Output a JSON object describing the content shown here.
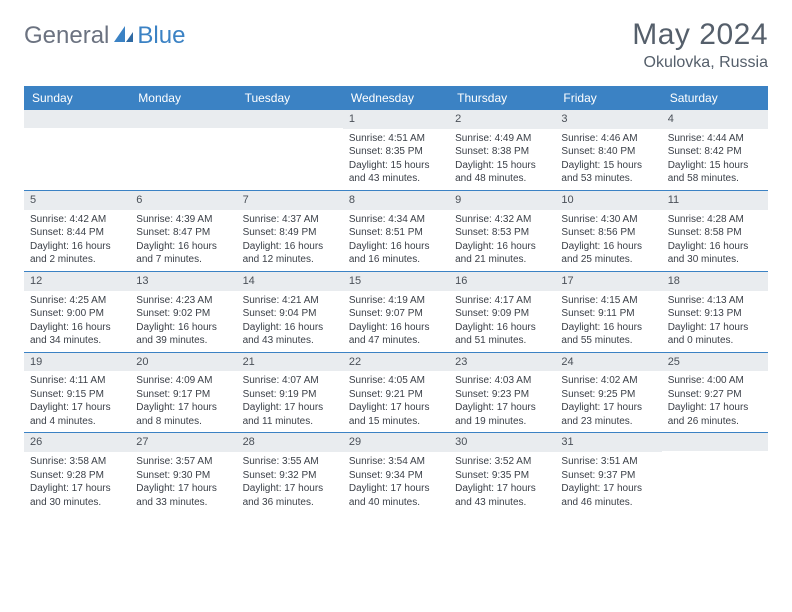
{
  "logo": {
    "part1": "General",
    "part2": "Blue"
  },
  "title": "May 2024",
  "location": "Okulovka, Russia",
  "colors": {
    "header_bar": "#3b82c4",
    "daynum_bg": "#e9ecef",
    "text": "#3a3f47",
    "title_text": "#555f6b"
  },
  "daysOfWeek": [
    "Sunday",
    "Monday",
    "Tuesday",
    "Wednesday",
    "Thursday",
    "Friday",
    "Saturday"
  ],
  "weeks": [
    [
      null,
      null,
      null,
      {
        "n": "1",
        "sr": "Sunrise: 4:51 AM",
        "ss": "Sunset: 8:35 PM",
        "dl": "Daylight: 15 hours and 43 minutes."
      },
      {
        "n": "2",
        "sr": "Sunrise: 4:49 AM",
        "ss": "Sunset: 8:38 PM",
        "dl": "Daylight: 15 hours and 48 minutes."
      },
      {
        "n": "3",
        "sr": "Sunrise: 4:46 AM",
        "ss": "Sunset: 8:40 PM",
        "dl": "Daylight: 15 hours and 53 minutes."
      },
      {
        "n": "4",
        "sr": "Sunrise: 4:44 AM",
        "ss": "Sunset: 8:42 PM",
        "dl": "Daylight: 15 hours and 58 minutes."
      }
    ],
    [
      {
        "n": "5",
        "sr": "Sunrise: 4:42 AM",
        "ss": "Sunset: 8:44 PM",
        "dl": "Daylight: 16 hours and 2 minutes."
      },
      {
        "n": "6",
        "sr": "Sunrise: 4:39 AM",
        "ss": "Sunset: 8:47 PM",
        "dl": "Daylight: 16 hours and 7 minutes."
      },
      {
        "n": "7",
        "sr": "Sunrise: 4:37 AM",
        "ss": "Sunset: 8:49 PM",
        "dl": "Daylight: 16 hours and 12 minutes."
      },
      {
        "n": "8",
        "sr": "Sunrise: 4:34 AM",
        "ss": "Sunset: 8:51 PM",
        "dl": "Daylight: 16 hours and 16 minutes."
      },
      {
        "n": "9",
        "sr": "Sunrise: 4:32 AM",
        "ss": "Sunset: 8:53 PM",
        "dl": "Daylight: 16 hours and 21 minutes."
      },
      {
        "n": "10",
        "sr": "Sunrise: 4:30 AM",
        "ss": "Sunset: 8:56 PM",
        "dl": "Daylight: 16 hours and 25 minutes."
      },
      {
        "n": "11",
        "sr": "Sunrise: 4:28 AM",
        "ss": "Sunset: 8:58 PM",
        "dl": "Daylight: 16 hours and 30 minutes."
      }
    ],
    [
      {
        "n": "12",
        "sr": "Sunrise: 4:25 AM",
        "ss": "Sunset: 9:00 PM",
        "dl": "Daylight: 16 hours and 34 minutes."
      },
      {
        "n": "13",
        "sr": "Sunrise: 4:23 AM",
        "ss": "Sunset: 9:02 PM",
        "dl": "Daylight: 16 hours and 39 minutes."
      },
      {
        "n": "14",
        "sr": "Sunrise: 4:21 AM",
        "ss": "Sunset: 9:04 PM",
        "dl": "Daylight: 16 hours and 43 minutes."
      },
      {
        "n": "15",
        "sr": "Sunrise: 4:19 AM",
        "ss": "Sunset: 9:07 PM",
        "dl": "Daylight: 16 hours and 47 minutes."
      },
      {
        "n": "16",
        "sr": "Sunrise: 4:17 AM",
        "ss": "Sunset: 9:09 PM",
        "dl": "Daylight: 16 hours and 51 minutes."
      },
      {
        "n": "17",
        "sr": "Sunrise: 4:15 AM",
        "ss": "Sunset: 9:11 PM",
        "dl": "Daylight: 16 hours and 55 minutes."
      },
      {
        "n": "18",
        "sr": "Sunrise: 4:13 AM",
        "ss": "Sunset: 9:13 PM",
        "dl": "Daylight: 17 hours and 0 minutes."
      }
    ],
    [
      {
        "n": "19",
        "sr": "Sunrise: 4:11 AM",
        "ss": "Sunset: 9:15 PM",
        "dl": "Daylight: 17 hours and 4 minutes."
      },
      {
        "n": "20",
        "sr": "Sunrise: 4:09 AM",
        "ss": "Sunset: 9:17 PM",
        "dl": "Daylight: 17 hours and 8 minutes."
      },
      {
        "n": "21",
        "sr": "Sunrise: 4:07 AM",
        "ss": "Sunset: 9:19 PM",
        "dl": "Daylight: 17 hours and 11 minutes."
      },
      {
        "n": "22",
        "sr": "Sunrise: 4:05 AM",
        "ss": "Sunset: 9:21 PM",
        "dl": "Daylight: 17 hours and 15 minutes."
      },
      {
        "n": "23",
        "sr": "Sunrise: 4:03 AM",
        "ss": "Sunset: 9:23 PM",
        "dl": "Daylight: 17 hours and 19 minutes."
      },
      {
        "n": "24",
        "sr": "Sunrise: 4:02 AM",
        "ss": "Sunset: 9:25 PM",
        "dl": "Daylight: 17 hours and 23 minutes."
      },
      {
        "n": "25",
        "sr": "Sunrise: 4:00 AM",
        "ss": "Sunset: 9:27 PM",
        "dl": "Daylight: 17 hours and 26 minutes."
      }
    ],
    [
      {
        "n": "26",
        "sr": "Sunrise: 3:58 AM",
        "ss": "Sunset: 9:28 PM",
        "dl": "Daylight: 17 hours and 30 minutes."
      },
      {
        "n": "27",
        "sr": "Sunrise: 3:57 AM",
        "ss": "Sunset: 9:30 PM",
        "dl": "Daylight: 17 hours and 33 minutes."
      },
      {
        "n": "28",
        "sr": "Sunrise: 3:55 AM",
        "ss": "Sunset: 9:32 PM",
        "dl": "Daylight: 17 hours and 36 minutes."
      },
      {
        "n": "29",
        "sr": "Sunrise: 3:54 AM",
        "ss": "Sunset: 9:34 PM",
        "dl": "Daylight: 17 hours and 40 minutes."
      },
      {
        "n": "30",
        "sr": "Sunrise: 3:52 AM",
        "ss": "Sunset: 9:35 PM",
        "dl": "Daylight: 17 hours and 43 minutes."
      },
      {
        "n": "31",
        "sr": "Sunrise: 3:51 AM",
        "ss": "Sunset: 9:37 PM",
        "dl": "Daylight: 17 hours and 46 minutes."
      },
      null
    ]
  ]
}
